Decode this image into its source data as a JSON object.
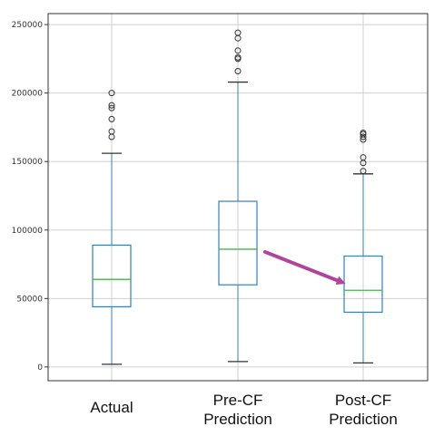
{
  "chart_data": {
    "type": "boxplot",
    "title": "",
    "xlabel": "",
    "ylabel": "",
    "ylim": [
      -10000,
      258000
    ],
    "yticks": [
      0,
      50000,
      100000,
      150000,
      200000,
      250000
    ],
    "ytick_labels": [
      "0",
      "50000",
      "100000",
      "150000",
      "200000",
      "250000"
    ],
    "grid": true,
    "categories": [
      [
        "Actual"
      ],
      [
        "Pre-CF",
        "Prediction"
      ],
      [
        "Post-CF",
        "Prediction"
      ]
    ],
    "boxes": [
      {
        "whisker_low": 2000,
        "q1": 44000,
        "median": 64000,
        "q3": 89000,
        "whisker_high": 156000,
        "outliers": [
          168000,
          172000,
          181000,
          189000,
          191000,
          200000
        ]
      },
      {
        "whisker_low": 4000,
        "q1": 60000,
        "median": 86000,
        "q3": 121000,
        "whisker_high": 208000,
        "outliers": [
          216000,
          225000,
          226000,
          231000,
          240000,
          244000
        ]
      },
      {
        "whisker_low": 3000,
        "q1": 40000,
        "median": 56000,
        "q3": 81000,
        "whisker_high": 141000,
        "outliers": [
          143000,
          149000,
          153000,
          166000,
          168000,
          170000,
          171000
        ]
      }
    ],
    "annotation": {
      "type": "arrow",
      "from": {
        "box": 1,
        "y": 86000
      },
      "to": {
        "box": 2,
        "y": 62000
      }
    },
    "colors": {
      "box": "#3a7fb5",
      "median": "#4caf50",
      "whisker_cap": "#333333",
      "outlier": "#333333",
      "grid": "#cfcfcf",
      "axes": "#333333",
      "arrow": "#b0449a"
    }
  }
}
